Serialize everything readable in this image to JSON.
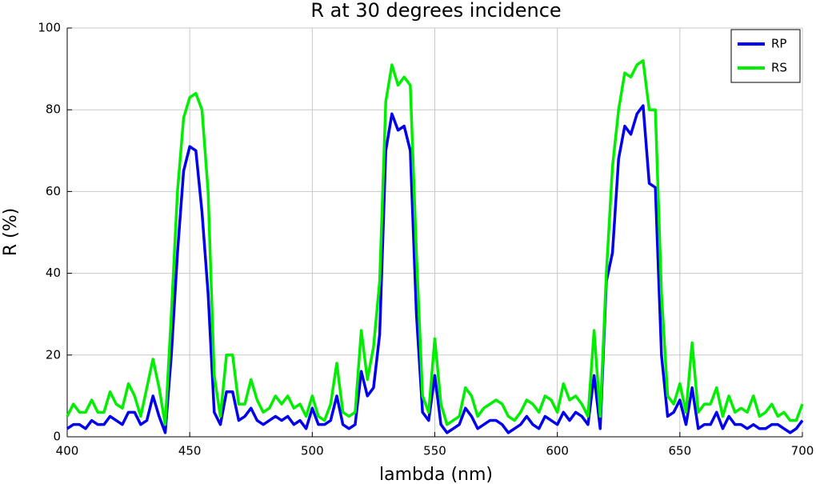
{
  "chart_data": {
    "type": "line",
    "title": "R at 30 degrees incidence",
    "xlabel": "lambda (nm)",
    "ylabel": "R (%)",
    "xlim": [
      400,
      700
    ],
    "ylim": [
      0,
      100
    ],
    "xticks": [
      400,
      450,
      500,
      550,
      600,
      650,
      700
    ],
    "yticks": [
      0,
      20,
      40,
      60,
      80,
      100
    ],
    "grid": true,
    "legend": "upper right",
    "x": [
      400,
      402.5,
      405,
      407.5,
      410,
      412.5,
      415,
      417.5,
      420,
      422.5,
      425,
      427.5,
      430,
      432.5,
      435,
      437.5,
      440,
      442.5,
      445,
      447.5,
      450,
      452.5,
      455,
      457.5,
      460,
      462.5,
      465,
      467.5,
      470,
      472.5,
      475,
      477.5,
      480,
      482.5,
      485,
      487.5,
      490,
      492.5,
      495,
      497.5,
      500,
      502.5,
      505,
      507.5,
      510,
      512.5,
      515,
      517.5,
      520,
      522.5,
      525,
      527.5,
      530,
      532.5,
      535,
      537.5,
      540,
      542.5,
      545,
      547.5,
      550,
      552.5,
      555,
      557.5,
      560,
      562.5,
      565,
      567.5,
      570,
      572.5,
      575,
      577.5,
      580,
      582.5,
      585,
      587.5,
      590,
      592.5,
      595,
      597.5,
      600,
      602.5,
      605,
      607.5,
      610,
      612.5,
      615,
      617.5,
      620,
      622.5,
      625,
      627.5,
      630,
      632.5,
      635,
      637.5,
      640,
      642.5,
      645,
      647.5,
      650,
      652.5,
      655,
      657.5,
      660,
      662.5,
      665,
      667.5,
      670,
      672.5,
      675,
      677.5,
      680,
      682.5,
      685,
      687.5,
      690,
      692.5,
      695,
      697.5,
      700
    ],
    "series": [
      {
        "name": "RP",
        "color": "#0000ee",
        "values": [
          2,
          3,
          3,
          2,
          4,
          3,
          3,
          5,
          4,
          3,
          6,
          6,
          3,
          4,
          10,
          5,
          1,
          20,
          45,
          65,
          71,
          70,
          55,
          35,
          6,
          3,
          11,
          11,
          4,
          5,
          7,
          4,
          3,
          4,
          5,
          4,
          5,
          3,
          4,
          2,
          7,
          3,
          3,
          4,
          10,
          3,
          2,
          3,
          16,
          10,
          12,
          25,
          70,
          79,
          75,
          76,
          70,
          30,
          6,
          4,
          15,
          3,
          1,
          2,
          3,
          7,
          5,
          2,
          3,
          4,
          4,
          3,
          1,
          2,
          3,
          5,
          3,
          2,
          5,
          4,
          3,
          6,
          4,
          6,
          5,
          3,
          15,
          2,
          38,
          45,
          68,
          76,
          74,
          79,
          81,
          62,
          61,
          20,
          5,
          6,
          9,
          3,
          12,
          2,
          3,
          3,
          6,
          2,
          5,
          3,
          3,
          2,
          3,
          2,
          2,
          3,
          3,
          2,
          1,
          2,
          4
        ]
      },
      {
        "name": "RS",
        "color": "#00ee00",
        "values": [
          5,
          8,
          6,
          6,
          9,
          6,
          6,
          11,
          8,
          7,
          13,
          10,
          5,
          12,
          19,
          12,
          3,
          30,
          60,
          78,
          83,
          84,
          80,
          60,
          15,
          5,
          20,
          20,
          8,
          8,
          14,
          9,
          6,
          7,
          10,
          8,
          10,
          7,
          8,
          5,
          10,
          5,
          4,
          8,
          18,
          6,
          5,
          6,
          26,
          14,
          22,
          38,
          82,
          91,
          86,
          88,
          86,
          45,
          10,
          6,
          24,
          8,
          3,
          4,
          5,
          12,
          10,
          5,
          7,
          8,
          9,
          8,
          5,
          4,
          6,
          9,
          8,
          6,
          10,
          9,
          6,
          13,
          9,
          10,
          8,
          5,
          26,
          5,
          40,
          66,
          80,
          89,
          88,
          91,
          92,
          80,
          80,
          35,
          10,
          8,
          13,
          6,
          23,
          6,
          8,
          8,
          12,
          5,
          10,
          6,
          7,
          6,
          10,
          5,
          6,
          8,
          5,
          6,
          4,
          4,
          8
        ]
      }
    ]
  }
}
